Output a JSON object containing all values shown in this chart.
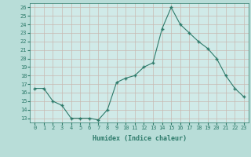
{
  "x": [
    0,
    1,
    2,
    3,
    4,
    5,
    6,
    7,
    8,
    9,
    10,
    11,
    12,
    13,
    14,
    15,
    16,
    17,
    18,
    19,
    20,
    21,
    22,
    23
  ],
  "y": [
    16.5,
    16.5,
    15.0,
    14.5,
    13.0,
    13.0,
    13.0,
    12.8,
    14.0,
    17.2,
    17.7,
    18.0,
    19.0,
    19.5,
    23.5,
    26.0,
    24.0,
    23.0,
    22.0,
    21.2,
    20.0,
    18.0,
    16.5,
    15.5
  ],
  "line_color": "#2d7a6a",
  "bg_color": "#b8ddd8",
  "plot_bg_color": "#d0eae8",
  "grid_color": "#c8b8b0",
  "xlabel": "Humidex (Indice chaleur)",
  "ylabel_ticks": [
    13,
    14,
    15,
    16,
    17,
    18,
    19,
    20,
    21,
    22,
    23,
    24,
    25,
    26
  ],
  "xlim": [
    -0.5,
    23.5
  ],
  "ylim": [
    12.5,
    26.5
  ],
  "tick_color": "#2d7a6a",
  "label_color": "#2d7a6a"
}
